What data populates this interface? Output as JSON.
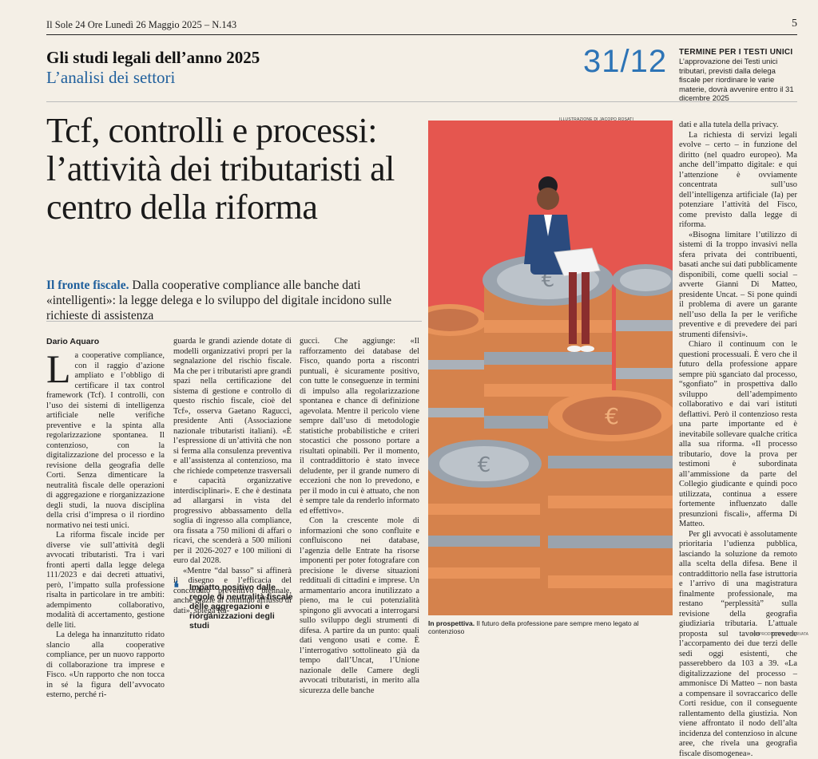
{
  "header": {
    "running_head": "Il Sole 24 Ore Lunedì 26 Maggio 2025 – N.143",
    "page_number": "5"
  },
  "section": {
    "title": "Gli studi legali dell’anno 2025",
    "subtitle": "L’analisi dei settori"
  },
  "deadline": {
    "date": "31/12",
    "title": "TERMINE PER I TESTI UNICI",
    "text": "L’approvazione dei Testi unici tributari, previsti dalla delega fiscale per riordinare le varie materie, dovrà avvenire entro il 31 dicembre 2025"
  },
  "article": {
    "headline": "Tcf, controlli e processi: l’attività dei tributaristi al centro della riforma",
    "subhead_lead": "Il fronte fiscale.",
    "subhead_text": " Dalla cooperative compliance alle banche dati «intelligenti»: la legge delega e lo sviluppo del digitale incidono sulle richieste di assistenza",
    "author": "Dario Aquaro",
    "dropcap": "L",
    "col1_p1": "a cooperative compliance, con il raggio d’azione ampliato e l’obbligo di certificare il tax control framework (Tcf). I controlli, con l’uso dei sistemi di intelligenza artificiale nelle verifiche preventive e la spinta alla regolarizzazione spontanea. Il contenzioso, con la digitalizzazione del processo e la revisione della geografia delle Corti. Senza dimenticare la neutralità fiscale delle operazioni di aggregazione e riorganizzazione degli studi, la nuova disciplina della crisi d’impresa o il riordino normativo nei testi unici.",
    "col1_p2": "La riforma fiscale incide per diverse vie sull’attività degli avvocati tributaristi. Tra i vari fronti aperti dalla legge delega 111/2023 e dai decreti attuativi, però, l’impatto sulla professione risalta in particolare in tre ambiti: adempimento collaborativo, modalità di accertamento, gestione delle liti.",
    "col1_p3": "La delega ha innanzitutto ridato slancio alla cooperative compliance, per un nuovo rapporto di collaborazione tra imprese e Fisco. «Un rapporto che non tocca in sé la figura dell’avvocato esterno, perché ri-",
    "col2_p1": "guarda le grandi aziende dotate di modelli organizzativi propri per la segnalazione del rischio fiscale. Ma che per i tributaristi apre grandi spazi nella certificazione del sistema di gestione e controllo di questo rischio fiscale, cioè del Tcf», osserva Gaetano Ragucci, presidente Anti (Associazione nazionale tributaristi italiani). «È l’espressione di un’attività che non si ferma alla consulenza preventiva e all’assistenza al contenzioso, ma che richiede competenze trasversali e capacità organizzative interdisciplinari». E che è destinata ad allargarsi in vista del progressivo abbassamento della soglia di ingresso alla compliance, ora fissata a 750 milioni di affari o ricavi, che scenderà a 500 milioni per il 2026-2027 e 100 milioni di euro dal 2028.",
    "col2_p2": "«Mentre “dal basso” si affinerà il disegno e l’efficacia del concordato preventivo biennale, anche grazie al continuo afflusso di dati», spiega Ra-",
    "quote": "Impatto positivo dalle regole di neutralità fiscale delle aggregazioni e riorganizzazioni degli studi",
    "col3_p1": "gucci. Che aggiunge: «Il rafforzamento dei database del Fisco, quando porta a riscontri puntuali, è sicuramente positivo, con tutte le conseguenze in termini di impulso alla regolarizzazione spontanea e chance di definizione agevolata. Mentre il pericolo viene sempre dall’uso di metodologie statistiche probabilistiche e criteri stocastici che possono portare a risultati opinabili. Per il momento, il contraddittorio è stato invece deludente, per il grande numero di eccezioni che non lo prevedono, e per il modo in cui è attuato, che non è sempre tale da renderlo informato ed effettivo».",
    "col3_p2": "Con la crescente mole di informazioni che sono confluite e confluiscono nei database, l’agenzia delle Entrate ha risorse imponenti per poter fotografare con precisione le diverse situazioni reddituali di cittadini e imprese. Un armamentario ancora inutilizzato a pieno, ma le cui potenzialità spingono gli avvocati a interrogarsi sullo sviluppo degli strumenti di difesa. A partire da un punto: quali dati vengono usati e come. È l’interrogativo sottolineato già da tempo dall’Uncat, l’Unione nazionale delle Camere degli avvocati tributaristi, in merito alla sicurezza delle banche",
    "col4_p0": "dati e alla tutela della privacy.",
    "col4_p1": "La richiesta di servizi legali evolve – certo – in funzione del diritto (nel quadro europeo). Ma anche dell’impatto digitale: e qui l’attenzione è ovviamente concentrata sull’uso dell’intelligenza artificiale (Ia) per potenziare l’attività del Fisco, come previsto dalla legge di riforma.",
    "col4_p2": "«Bisogna limitare l’utilizzo di sistemi di Ia troppo invasivi nella sfera privata dei contribuenti, basati anche sui dati pubblicamente disponibili, come quelli social – avverte Gianni Di Matteo, presidente Uncat. – Si pone quindi il problema di avere un garante nell’uso della Ia per le verifiche preventive e di prevedere dei pari strumenti difensivi».",
    "col4_p3": "Chiaro il continuum con le questioni processuali. È vero che il futuro della professione appare sempre più sganciato dal processo, “sgonfiato” in prospettiva dallo sviluppo dell’adempimento collaborativo e dai vari istituti deflattivi. Però il contenzioso resta una parte importante ed è inevitabile sollevare qualche critica alla sua riforma. «Il processo tributario, dove la prova per testimoni è subordinata all’ammissione da parte del Collegio giudicante e quindi poco utilizzata, continua a essere fortemente influenzato dalle presunzioni fiscali», afferma Di Matteo.",
    "col4_p4": "Per gli avvocati è assolutamente prioritaria l’udienza pubblica, lasciando la soluzione da remoto alla scelta della difesa. Bene il contraddittorio nella fase istruttoria e l’arrivo di una magistratura finalmente professionale, ma restano “perplessità” sulla revisione della geografia giudiziaria tributaria. L’attuale proposta sul tavolo prevede l’accorpamento dei due terzi delle sedi oggi esistenti, che passerebbero da 103 a 39. «La digitalizzazione del processo – ammonisce Di Matteo – non basta a compensare il sovraccarico delle Corti residue, con il conseguente rallentamento della giustizia. Non viene affrontato il nodo dell’alta incidenza del contenzioso in alcune aree, che rivela una geografia fiscale disomogenea».",
    "repro": "© RIPRODUZIONE RISERVATA"
  },
  "illustration": {
    "credit": "ILLUSTRAZIONE DI JACOPO ROSATI",
    "caption_lead": "In prospettiva.",
    "caption_text": " Il futuro della professione pare sempre meno legato al contenzioso",
    "bg_color": "#e5564f",
    "coin_color": "#e8935a",
    "coin_silver": "#9aa3ad"
  }
}
